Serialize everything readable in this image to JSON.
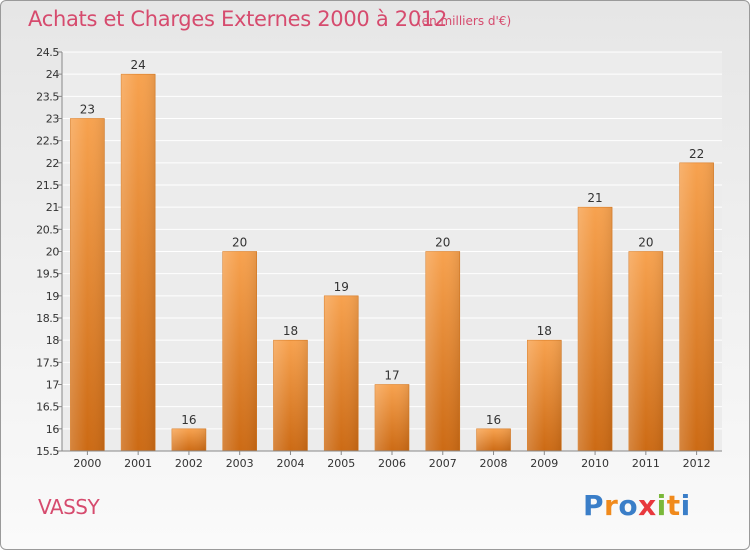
{
  "header": {
    "title": "Achats et Charges Externes 2000 à 2012",
    "subtitle": "(en milliers d'€)"
  },
  "location": "VASSY",
  "brand": {
    "letters": [
      {
        "ch": "P",
        "color": "#3a7ec8"
      },
      {
        "ch": "r",
        "color": "#f08a1c"
      },
      {
        "ch": "o",
        "color": "#3a7ec8"
      },
      {
        "ch": "x",
        "color": "#e8383d"
      },
      {
        "ch": "i",
        "color": "#7ab83a"
      },
      {
        "ch": "t",
        "color": "#f08a1c"
      },
      {
        "ch": "i",
        "color": "#3a7ec8"
      }
    ]
  },
  "chart_data": {
    "type": "bar",
    "title": "Achats et Charges Externes 2000 à 2012",
    "subtitle": "(en milliers d'€)",
    "categories": [
      "2000",
      "2001",
      "2002",
      "2003",
      "2004",
      "2005",
      "2006",
      "2007",
      "2008",
      "2009",
      "2010",
      "2011",
      "2012"
    ],
    "values": [
      23,
      24,
      16,
      20,
      18,
      19,
      17,
      20,
      16,
      18,
      21,
      20,
      22
    ],
    "ylim": [
      15.5,
      24.5
    ],
    "yticks": [
      15.5,
      16,
      16.5,
      17,
      17.5,
      18,
      18.5,
      19,
      19.5,
      20,
      20.5,
      21,
      21.5,
      22,
      22.5,
      23,
      23.5,
      24,
      24.5
    ],
    "grid": true,
    "bar_color": "#f08c32"
  }
}
